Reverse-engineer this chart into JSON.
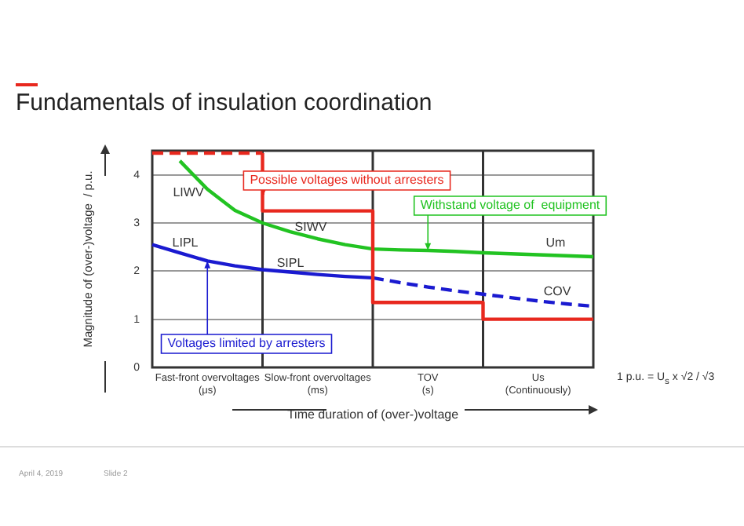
{
  "chart_data": {
    "type": "line",
    "title": "Fundamentals of insulation coordination",
    "xlabel": "Time duration of (over-)voltage",
    "ylabel": "Magnitude of (over-)voltage  / p.u.",
    "categories": [
      null,
      null,
      "Fast-front overvoltages\n(μs)",
      null,
      null,
      null,
      "Slow-front overvoltages\n(ms)",
      null,
      null,
      null,
      "TOV\n(s)",
      null,
      null,
      null,
      "Us\n(Continuously)",
      null,
      null
    ],
    "ylim": [
      0,
      4.5
    ],
    "yticks": [
      0,
      1,
      2,
      3,
      4
    ],
    "grid": true,
    "legend": false,
    "marker": "none",
    "series": [
      {
        "color": "#e8281e",
        "line_style": "dashed",
        "values": [
          4.45,
          4.45,
          4.45,
          4.45,
          4.45,
          null,
          null,
          null,
          null,
          null,
          null,
          null,
          null,
          null,
          null,
          null,
          null
        ]
      },
      {
        "type": "step",
        "color": "#e8281e",
        "line_style": "solid",
        "values": [
          null,
          null,
          null,
          null,
          4.45,
          3.25,
          3.25,
          3.25,
          3.25,
          1.35,
          1.35,
          1.35,
          1.35,
          1.0,
          1.0,
          1.0,
          1.0
        ]
      },
      {
        "color": "#22c322",
        "line_style": "solid",
        "values": [
          null,
          4.29,
          3.7,
          3.26,
          3.0,
          2.82,
          2.67,
          2.55,
          2.46,
          2.44,
          2.43,
          2.41,
          2.38,
          2.36,
          2.34,
          2.32,
          2.3
        ]
      },
      {
        "color": "#1a1ad0",
        "line_style": "solid",
        "values": [
          2.55,
          2.38,
          2.21,
          2.11,
          2.03,
          1.98,
          1.93,
          1.89,
          1.86,
          null,
          null,
          null,
          null,
          null,
          null,
          null,
          null
        ]
      },
      {
        "color": "#1a1ad0",
        "line_style": "dashed",
        "values": [
          null,
          null,
          null,
          null,
          null,
          null,
          null,
          null,
          1.86,
          1.76,
          1.67,
          1.59,
          1.52,
          1.45,
          1.38,
          1.32,
          1.27
        ]
      }
    ],
    "annotations": [
      "LIWV",
      "LIPL",
      "SIWV",
      "SIPL",
      "Um",
      "COV",
      "Possible voltages without arresters",
      {
        "text": "Withstand voltage of  equipment",
        "x": "TOV\n(s)",
        "y": 2.43
      },
      {
        "text": "Voltages limited by arresters",
        "x": "Fast-front overvoltages\n(μs)",
        "y": 2.21
      },
      "1 p.u. = U$_{s}$ x √2 / √3",
      "April 4, 2019",
      "Slide 2"
    ]
  }
}
